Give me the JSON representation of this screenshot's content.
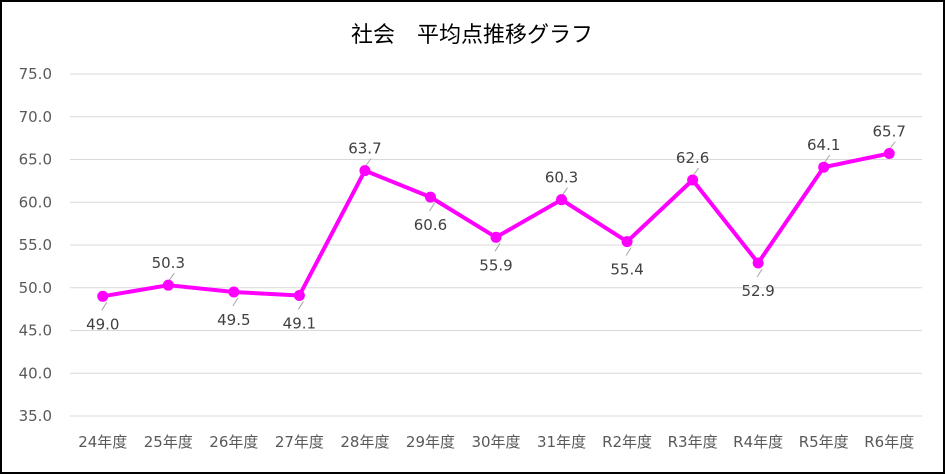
{
  "chart_data": {
    "type": "line",
    "title": "社会　平均点推移グラフ",
    "xlabel": "",
    "ylabel": "",
    "categories": [
      "24年度",
      "25年度",
      "26年度",
      "27年度",
      "28年度",
      "29年度",
      "30年度",
      "31年度",
      "R2年度",
      "R3年度",
      "R4年度",
      "R5年度",
      "R6年度"
    ],
    "series": [
      {
        "values": [
          49.0,
          50.3,
          49.5,
          49.1,
          63.7,
          60.6,
          55.9,
          60.3,
          55.4,
          62.6,
          52.9,
          64.1,
          65.7
        ],
        "data_labels": [
          "49.0",
          "50.3",
          "49.5",
          "49.1",
          "63.7",
          "60.6",
          "55.9",
          "60.3",
          "55.4",
          "62.6",
          "52.9",
          "64.1",
          "65.7"
        ],
        "label_position": [
          "below",
          "above",
          "below",
          "below",
          "above",
          "below",
          "below",
          "above",
          "below",
          "above",
          "below",
          "above",
          "above"
        ],
        "color": "#ff00ff"
      }
    ],
    "ylim": [
      35.0,
      75.0
    ],
    "yticks": [
      35.0,
      40.0,
      45.0,
      50.0,
      55.0,
      60.0,
      65.0,
      70.0,
      75.0
    ],
    "ytick_labels": [
      "35.0",
      "40.0",
      "45.0",
      "50.0",
      "55.0",
      "60.0",
      "65.0",
      "70.0",
      "75.0"
    ],
    "grid": "horizontal",
    "legend": "none"
  }
}
